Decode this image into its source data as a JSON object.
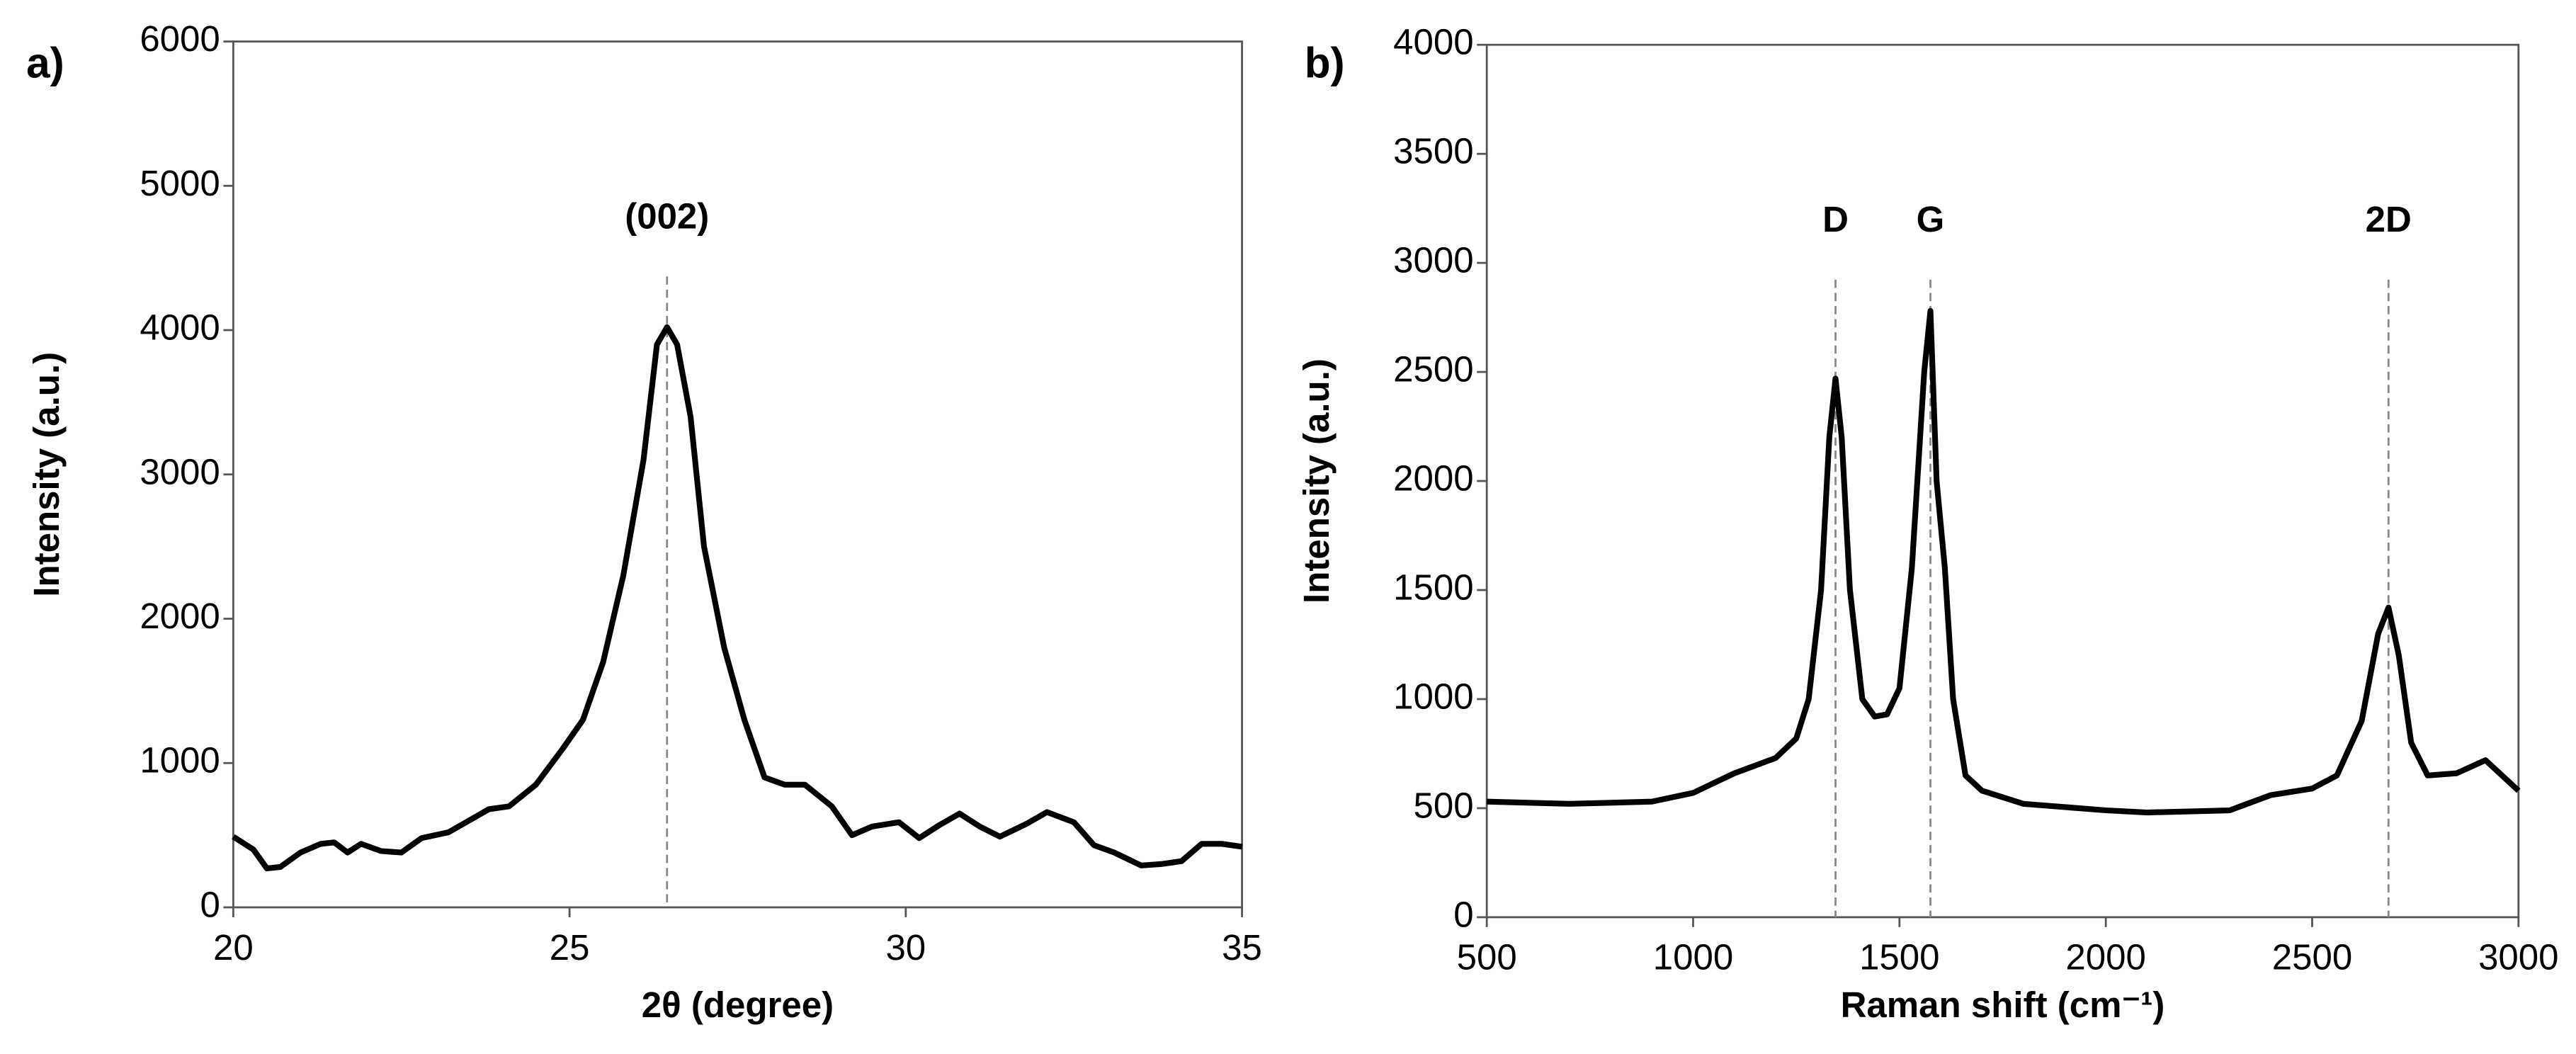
{
  "chart_data": [
    {
      "type": "line",
      "panel_label": "a)",
      "xlabel": "2θ (degree)",
      "ylabel": "Intensity (a.u.)",
      "color": "#000000",
      "xlim": [
        20,
        35
      ],
      "xticks": [
        20,
        25,
        30,
        35
      ],
      "ylim": [
        0,
        6000
      ],
      "yticks": [
        0,
        1000,
        2000,
        3000,
        4000,
        5000,
        6000
      ],
      "x": [
        20,
        20.3,
        20.5,
        20.7,
        21,
        21.3,
        21.5,
        21.7,
        21.9,
        22.2,
        22.5,
        22.8,
        23.2,
        23.5,
        23.8,
        24.1,
        24.5,
        24.9,
        25.2,
        25.5,
        25.8,
        26.1,
        26.3,
        26.45,
        26.6,
        26.8,
        27.0,
        27.3,
        27.6,
        27.9,
        28.2,
        28.5,
        28.9,
        29.2,
        29.5,
        29.9,
        30.2,
        30.5,
        30.8,
        31.1,
        31.4,
        31.8,
        32.1,
        32.5,
        32.8,
        33.1,
        33.5,
        33.8,
        34.1,
        34.4,
        34.7,
        35
      ],
      "values": [
        490,
        400,
        270,
        280,
        380,
        440,
        450,
        380,
        440,
        390,
        380,
        480,
        520,
        600,
        680,
        700,
        850,
        1100,
        1300,
        1700,
        2300,
        3100,
        3900,
        4020,
        3900,
        3400,
        2500,
        1800,
        1300,
        900,
        850,
        850,
        700,
        500,
        560,
        590,
        480,
        570,
        650,
        560,
        490,
        580,
        660,
        590,
        430,
        380,
        290,
        300,
        320,
        440,
        440,
        420
      ],
      "annotations": [
        {
          "text": "(002)",
          "x": 26.45
        }
      ]
    },
    {
      "type": "line",
      "panel_label": "b)",
      "xlabel": "Raman shift (cm⁻¹)",
      "ylabel": "Intensity (a.u.)",
      "color": "#000000",
      "xlim": [
        500,
        3000
      ],
      "xticks": [
        500,
        1000,
        1500,
        2000,
        2500,
        3000
      ],
      "ylim": [
        0,
        4000
      ],
      "yticks": [
        0,
        500,
        1000,
        1500,
        2000,
        2500,
        3000,
        3500,
        4000
      ],
      "x": [
        500,
        700,
        900,
        1000,
        1100,
        1200,
        1250,
        1280,
        1310,
        1330,
        1345,
        1360,
        1380,
        1410,
        1440,
        1470,
        1500,
        1530,
        1560,
        1575,
        1590,
        1610,
        1630,
        1660,
        1700,
        1800,
        2000,
        2100,
        2300,
        2400,
        2500,
        2560,
        2620,
        2660,
        2685,
        2710,
        2740,
        2780,
        2850,
        2920,
        2960,
        3000
      ],
      "values": [
        530,
        520,
        530,
        570,
        660,
        730,
        820,
        1000,
        1500,
        2200,
        2470,
        2200,
        1500,
        1000,
        920,
        930,
        1050,
        1600,
        2500,
        2780,
        2000,
        1600,
        1000,
        650,
        580,
        520,
        490,
        480,
        490,
        560,
        590,
        650,
        900,
        1300,
        1420,
        1200,
        800,
        650,
        660,
        720,
        650,
        580
      ],
      "annotations": [
        {
          "text": "D",
          "x": 1345
        },
        {
          "text": "G",
          "x": 1575
        },
        {
          "text": "2D",
          "x": 2685
        }
      ]
    }
  ]
}
